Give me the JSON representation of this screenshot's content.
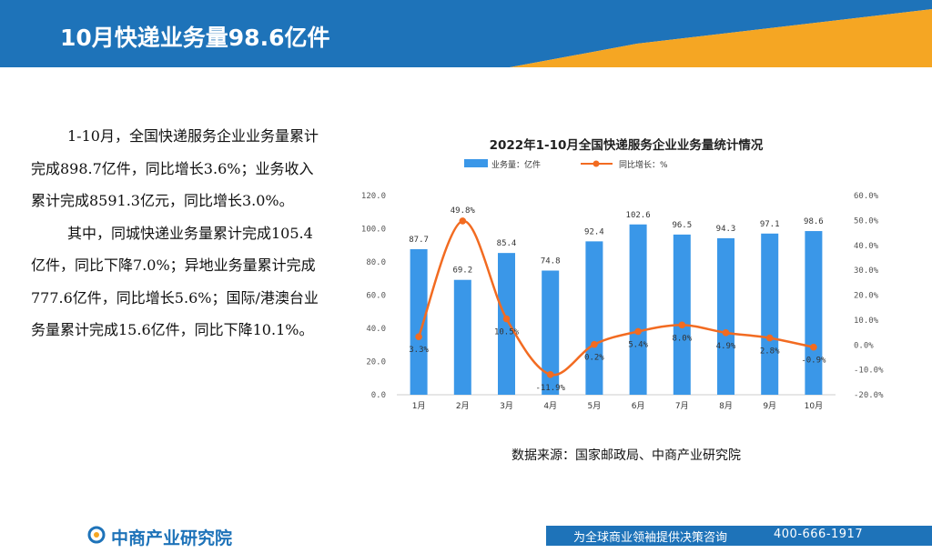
{
  "header": {
    "title": "10月快递业务量98.6亿件",
    "colors": {
      "band": "#1e73b9",
      "accent": "#f5a623"
    }
  },
  "body": {
    "paragraph1": "1-10月，全国快递服务企业业务量累计完成898.7亿件，同比增长3.6%；业务收入累计完成8591.3亿元，同比增长3.0%。",
    "paragraph2": "其中，同城快递业务量累计完成105.4亿件，同比下降7.0%；异地业务量累计完成777.6亿件，同比增长5.6%；国际/港澳台业务量累计完成15.6亿件，同比下降10.1%。"
  },
  "chart_data": {
    "type": "bar",
    "title": "2022年1-10月全国快递服务企业业务量统计情况",
    "categories": [
      "1月",
      "2月",
      "3月",
      "4月",
      "5月",
      "6月",
      "7月",
      "8月",
      "9月",
      "10月"
    ],
    "series": [
      {
        "name": "业务量：亿件",
        "type": "bar",
        "axis": "left",
        "color": "#3a97e8",
        "values": [
          87.7,
          69.2,
          85.4,
          74.8,
          92.4,
          102.6,
          96.5,
          94.3,
          97.1,
          98.6
        ],
        "labels": [
          "87.7",
          "69.2",
          "85.4",
          "74.8",
          "92.4",
          "102.6",
          "96.5",
          "94.3",
          "97.1",
          "98.6"
        ]
      },
      {
        "name": "同比增长：%",
        "type": "line",
        "axis": "right",
        "color": "#f26b21",
        "values": [
          3.3,
          49.8,
          10.5,
          -11.9,
          0.2,
          5.4,
          8.0,
          4.9,
          2.8,
          -0.9
        ],
        "labels": [
          "3.3%",
          "49.8%",
          "10.5%",
          "-11.9%",
          "0.2%",
          "5.4%",
          "8.0%",
          "4.9%",
          "2.8%",
          "-0.9%"
        ]
      }
    ],
    "y_left": {
      "min": 0,
      "max": 120,
      "ticks": [
        "0.0",
        "20.0",
        "40.0",
        "60.0",
        "80.0",
        "100.0",
        "120.0"
      ]
    },
    "y_right": {
      "min": -20,
      "max": 60,
      "ticks": [
        "-20.0%",
        "-10.0%",
        "0.0%",
        "10.0%",
        "20.0%",
        "30.0%",
        "40.0%",
        "50.0%",
        "60.0%"
      ]
    },
    "legend_position": "top",
    "grid": false,
    "source": "数据来源：国家邮政局、中商产业研究院"
  },
  "footer": {
    "logo_text": "中商产业研究院",
    "slogan": "为全球商业领袖提供决策咨询",
    "phone": "400-666-1917"
  }
}
